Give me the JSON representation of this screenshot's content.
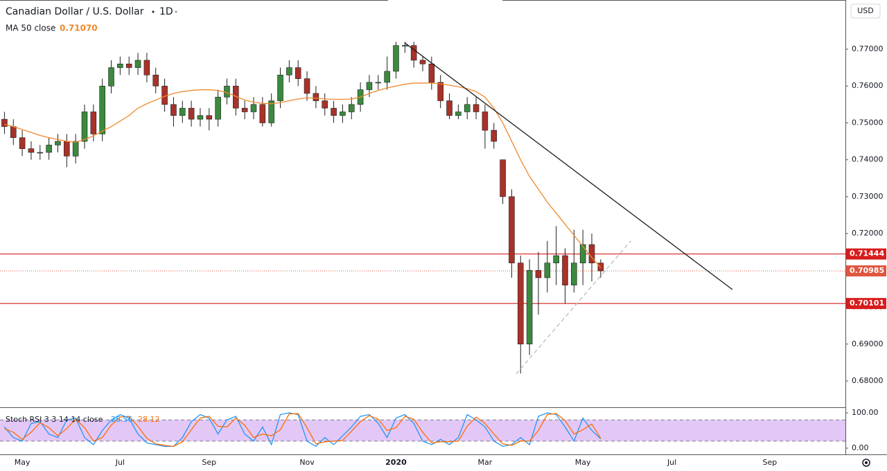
{
  "chart_data": {
    "type": "candlestick",
    "title": "Canadian Dollar / U.S. Dollar",
    "interval": "1D",
    "currency": "USD",
    "categories": [
      null,
      null,
      "May",
      null,
      null,
      null,
      null,
      null,
      null,
      null,
      null,
      null,
      null,
      "Jul",
      null,
      null,
      null,
      null,
      null,
      null,
      null,
      null,
      null,
      "Sep",
      null,
      null,
      null,
      null,
      null,
      null,
      null,
      null,
      null,
      null,
      "Nov",
      null,
      null,
      null,
      null,
      null,
      null,
      null,
      null,
      null,
      "2020",
      null,
      null,
      null,
      null,
      null,
      null,
      null,
      null,
      null,
      "Mar",
      null,
      null,
      null,
      null,
      null,
      null,
      null,
      null,
      null,
      null,
      "May",
      null,
      null,
      null,
      null,
      null,
      null,
      null,
      null,
      null,
      "Jul",
      null,
      null,
      null,
      null,
      null,
      null,
      null,
      null,
      null,
      null,
      "Sep",
      null,
      null,
      null,
      null,
      null,
      null,
      null,
      null
    ],
    "open": [
      0.751,
      0.749,
      0.746,
      0.743,
      0.742,
      0.742,
      0.744,
      0.745,
      0.741,
      0.745,
      0.753,
      0.747,
      0.76,
      0.765,
      0.766,
      0.765,
      0.767,
      0.763,
      0.76,
      0.755,
      0.752,
      0.754,
      0.751,
      0.752,
      0.751,
      0.757,
      0.76,
      0.754,
      0.753,
      0.755,
      0.75,
      0.756,
      0.763,
      0.765,
      0.762,
      0.758,
      0.756,
      0.754,
      0.752,
      0.753,
      0.755,
      0.759,
      0.761,
      0.761,
      0.764,
      0.771,
      0.771,
      0.767,
      0.766,
      0.761,
      0.756,
      0.752,
      0.753,
      0.755,
      0.753,
      0.748,
      0.74,
      0.73,
      0.712,
      0.69,
      0.71,
      0.708,
      0.712,
      0.714,
      0.706,
      0.712,
      0.717,
      0.712,
      null,
      null,
      null,
      null,
      null,
      null,
      null,
      null,
      null,
      null,
      null,
      null,
      null,
      null,
      null,
      null,
      null,
      null,
      null,
      null,
      null,
      null,
      null,
      null,
      null,
      null,
      null
    ],
    "high": [
      0.753,
      0.751,
      0.748,
      0.745,
      0.744,
      0.746,
      0.747,
      0.747,
      0.747,
      0.755,
      0.755,
      0.762,
      0.767,
      0.768,
      0.768,
      0.769,
      0.769,
      0.765,
      0.762,
      0.757,
      0.756,
      0.756,
      0.754,
      0.754,
      0.759,
      0.762,
      0.762,
      0.756,
      0.757,
      0.757,
      0.758,
      0.765,
      0.767,
      0.767,
      0.764,
      0.76,
      0.758,
      0.756,
      0.755,
      0.757,
      0.761,
      0.763,
      0.763,
      0.768,
      0.772,
      0.772,
      0.772,
      0.768,
      0.768,
      0.763,
      0.758,
      0.755,
      0.757,
      0.757,
      0.755,
      0.75,
      0.74,
      0.732,
      0.714,
      0.713,
      0.715,
      0.718,
      0.722,
      0.716,
      0.721,
      0.721,
      0.72,
      0.713,
      null,
      null,
      null,
      null,
      null,
      null,
      null,
      null,
      null,
      null,
      null,
      null,
      null,
      null,
      null,
      null,
      null,
      null,
      null,
      null,
      null,
      null,
      null,
      null,
      null,
      null,
      null
    ],
    "low": [
      0.747,
      0.744,
      0.741,
      0.74,
      0.74,
      0.74,
      0.742,
      0.738,
      0.739,
      0.743,
      0.745,
      0.745,
      0.758,
      0.763,
      0.763,
      0.763,
      0.761,
      0.758,
      0.753,
      0.749,
      0.75,
      0.749,
      0.749,
      0.748,
      0.749,
      0.755,
      0.752,
      0.751,
      0.751,
      0.749,
      0.749,
      0.754,
      0.761,
      0.76,
      0.756,
      0.754,
      0.752,
      0.75,
      0.75,
      0.751,
      0.753,
      0.757,
      0.759,
      0.759,
      0.762,
      0.769,
      0.765,
      0.764,
      0.759,
      0.754,
      0.751,
      0.751,
      0.751,
      0.751,
      0.743,
      0.743,
      0.728,
      0.708,
      0.682,
      0.687,
      0.698,
      0.704,
      0.706,
      0.701,
      0.704,
      0.706,
      0.707,
      0.708,
      null,
      null,
      null,
      null,
      null,
      null,
      null,
      null,
      null,
      null,
      null,
      null,
      null,
      null,
      null,
      null,
      null,
      null,
      null,
      null,
      null,
      null,
      null,
      null,
      null,
      null,
      null
    ],
    "close": [
      0.749,
      0.746,
      0.743,
      0.742,
      0.742,
      0.744,
      0.745,
      0.741,
      0.745,
      0.753,
      0.747,
      0.76,
      0.765,
      0.766,
      0.765,
      0.767,
      0.763,
      0.76,
      0.755,
      0.752,
      0.754,
      0.751,
      0.752,
      0.751,
      0.757,
      0.76,
      0.754,
      0.753,
      0.755,
      0.75,
      0.756,
      0.763,
      0.765,
      0.762,
      0.758,
      0.756,
      0.754,
      0.752,
      0.753,
      0.755,
      0.759,
      0.761,
      0.761,
      0.764,
      0.771,
      0.771,
      0.767,
      0.766,
      0.761,
      0.756,
      0.752,
      0.753,
      0.755,
      0.753,
      0.748,
      0.745,
      0.73,
      0.712,
      0.69,
      0.71,
      0.708,
      0.712,
      0.714,
      0.706,
      0.712,
      0.717,
      0.712,
      0.70985,
      null,
      null,
      null,
      null,
      null,
      null,
      null,
      null,
      null,
      null,
      null,
      null,
      null,
      null,
      null,
      null,
      null,
      null,
      null,
      null,
      null,
      null,
      null,
      null,
      null,
      null,
      null
    ],
    "up_color": "#3b8a3e",
    "down_color": "#a8322a",
    "wick_color": "#1e1e1e",
    "ma": {
      "name": "MA 50 close",
      "color": "#f0882b",
      "current": {
        "value": 0.7107,
        "label": "0.71070"
      },
      "values": [
        0.7496,
        0.749,
        0.7482,
        0.7474,
        0.7466,
        0.746,
        0.7455,
        0.745,
        0.7448,
        0.7455,
        0.7465,
        0.7478,
        0.749,
        0.7505,
        0.752,
        0.754,
        0.7552,
        0.7562,
        0.7572,
        0.758,
        0.7585,
        0.7588,
        0.759,
        0.759,
        0.7588,
        0.7582,
        0.7572,
        0.7562,
        0.7556,
        0.7553,
        0.7552,
        0.7555,
        0.756,
        0.7565,
        0.7568,
        0.7567,
        0.7565,
        0.7564,
        0.7564,
        0.7565,
        0.757,
        0.758,
        0.7588,
        0.7595,
        0.76,
        0.7605,
        0.7608,
        0.7608,
        0.7608,
        0.7606,
        0.7602,
        0.7598,
        0.7593,
        0.7585,
        0.757,
        0.754,
        0.75,
        0.745,
        0.74,
        0.7355,
        0.732,
        0.7285,
        0.7255,
        0.7225,
        0.7195,
        0.7165,
        0.7135,
        0.7107,
        null,
        null,
        null,
        null,
        null,
        null,
        null,
        null,
        null,
        null,
        null,
        null,
        null,
        null,
        null,
        null,
        null,
        null,
        null,
        null,
        null,
        null,
        null,
        null,
        null,
        null,
        null
      ]
    },
    "ylim": [
      0.67286,
      0.78334
    ],
    "yticks": [
      {
        "value": 0.68,
        "label": "0.68000"
      },
      {
        "value": 0.69,
        "label": "0.69000"
      },
      {
        "value": 0.7,
        "label": "0.70000"
      },
      {
        "value": 0.71,
        "label": "0.71000"
      },
      {
        "value": 0.72,
        "label": "0.72000"
      },
      {
        "value": 0.73,
        "label": "0.73000"
      },
      {
        "value": 0.74,
        "label": "0.74000"
      },
      {
        "value": 0.75,
        "label": "0.75000"
      },
      {
        "value": 0.76,
        "label": "0.76000"
      },
      {
        "value": 0.77,
        "label": "0.77000"
      }
    ],
    "horizontal_lines": [
      0.71444,
      0.70101
    ],
    "horizontal_line_color": "#d81b1b",
    "last_price_color": "#e0553f",
    "trend_lines": [
      {
        "x": [
          45,
          81.8
        ],
        "y": [
          0.7717,
          0.7048
        ],
        "color": "#1a1a1a",
        "dashed": false
      },
      {
        "x": [
          57.5,
          70.4
        ],
        "y": [
          0.6819,
          0.718
        ],
        "color": "#b8bbc4",
        "dashed": true
      }
    ],
    "grid": false,
    "stoch_rsi": {
      "name": "Stoch RSI 3 3 14 14 close",
      "bands": [
        20,
        80
      ],
      "band_fill": "#e3c8f7",
      "ylim": [
        -17.6,
        113.7
      ],
      "yticks": [
        {
          "value": 100,
          "label": "100.00"
        },
        {
          "value": 0,
          "label": "0.00"
        }
      ],
      "series": [
        {
          "color": "#2196f3",
          "values": [
            60,
            30,
            20,
            70,
            75,
            40,
            30,
            80,
            85,
            30,
            10,
            50,
            80,
            95,
            85,
            40,
            15,
            10,
            5,
            5,
            30,
            75,
            95,
            85,
            40,
            80,
            90,
            40,
            20,
            60,
            10,
            95,
            100,
            95,
            20,
            5,
            30,
            10,
            35,
            60,
            90,
            95,
            70,
            30,
            85,
            95,
            70,
            20,
            10,
            25,
            10,
            30,
            95,
            80,
            60,
            20,
            5,
            10,
            30,
            10,
            90,
            100,
            95,
            60,
            20,
            85,
            50,
            26.56,
            null,
            null,
            null,
            null,
            null,
            null,
            null,
            null,
            null,
            null,
            null,
            null,
            null,
            null,
            null,
            null,
            null,
            null,
            null,
            null,
            null,
            null,
            null,
            null,
            null,
            null,
            null
          ]
        },
        {
          "color": "#ff6d00",
          "values": [
            55,
            45,
            25,
            45,
            72,
            58,
            35,
            55,
            82,
            58,
            20,
            30,
            65,
            88,
            90,
            62,
            28,
            12,
            8,
            5,
            18,
            52,
            85,
            90,
            62,
            60,
            85,
            65,
            30,
            40,
            35,
            52,
            97,
            98,
            58,
            12,
            18,
            20,
            22,
            48,
            75,
            92,
            82,
            50,
            58,
            90,
            82,
            45,
            15,
            18,
            18,
            20,
            62,
            88,
            70,
            40,
            12,
            8,
            20,
            20,
            50,
            95,
            98,
            78,
            40,
            52,
            68,
            28.12,
            null,
            null,
            null,
            null,
            null,
            null,
            null,
            null,
            null,
            null,
            null,
            null,
            null,
            null,
            null,
            null,
            null,
            null,
            null,
            null,
            null,
            null,
            null,
            null,
            null,
            null,
            null
          ]
        }
      ]
    }
  }
}
